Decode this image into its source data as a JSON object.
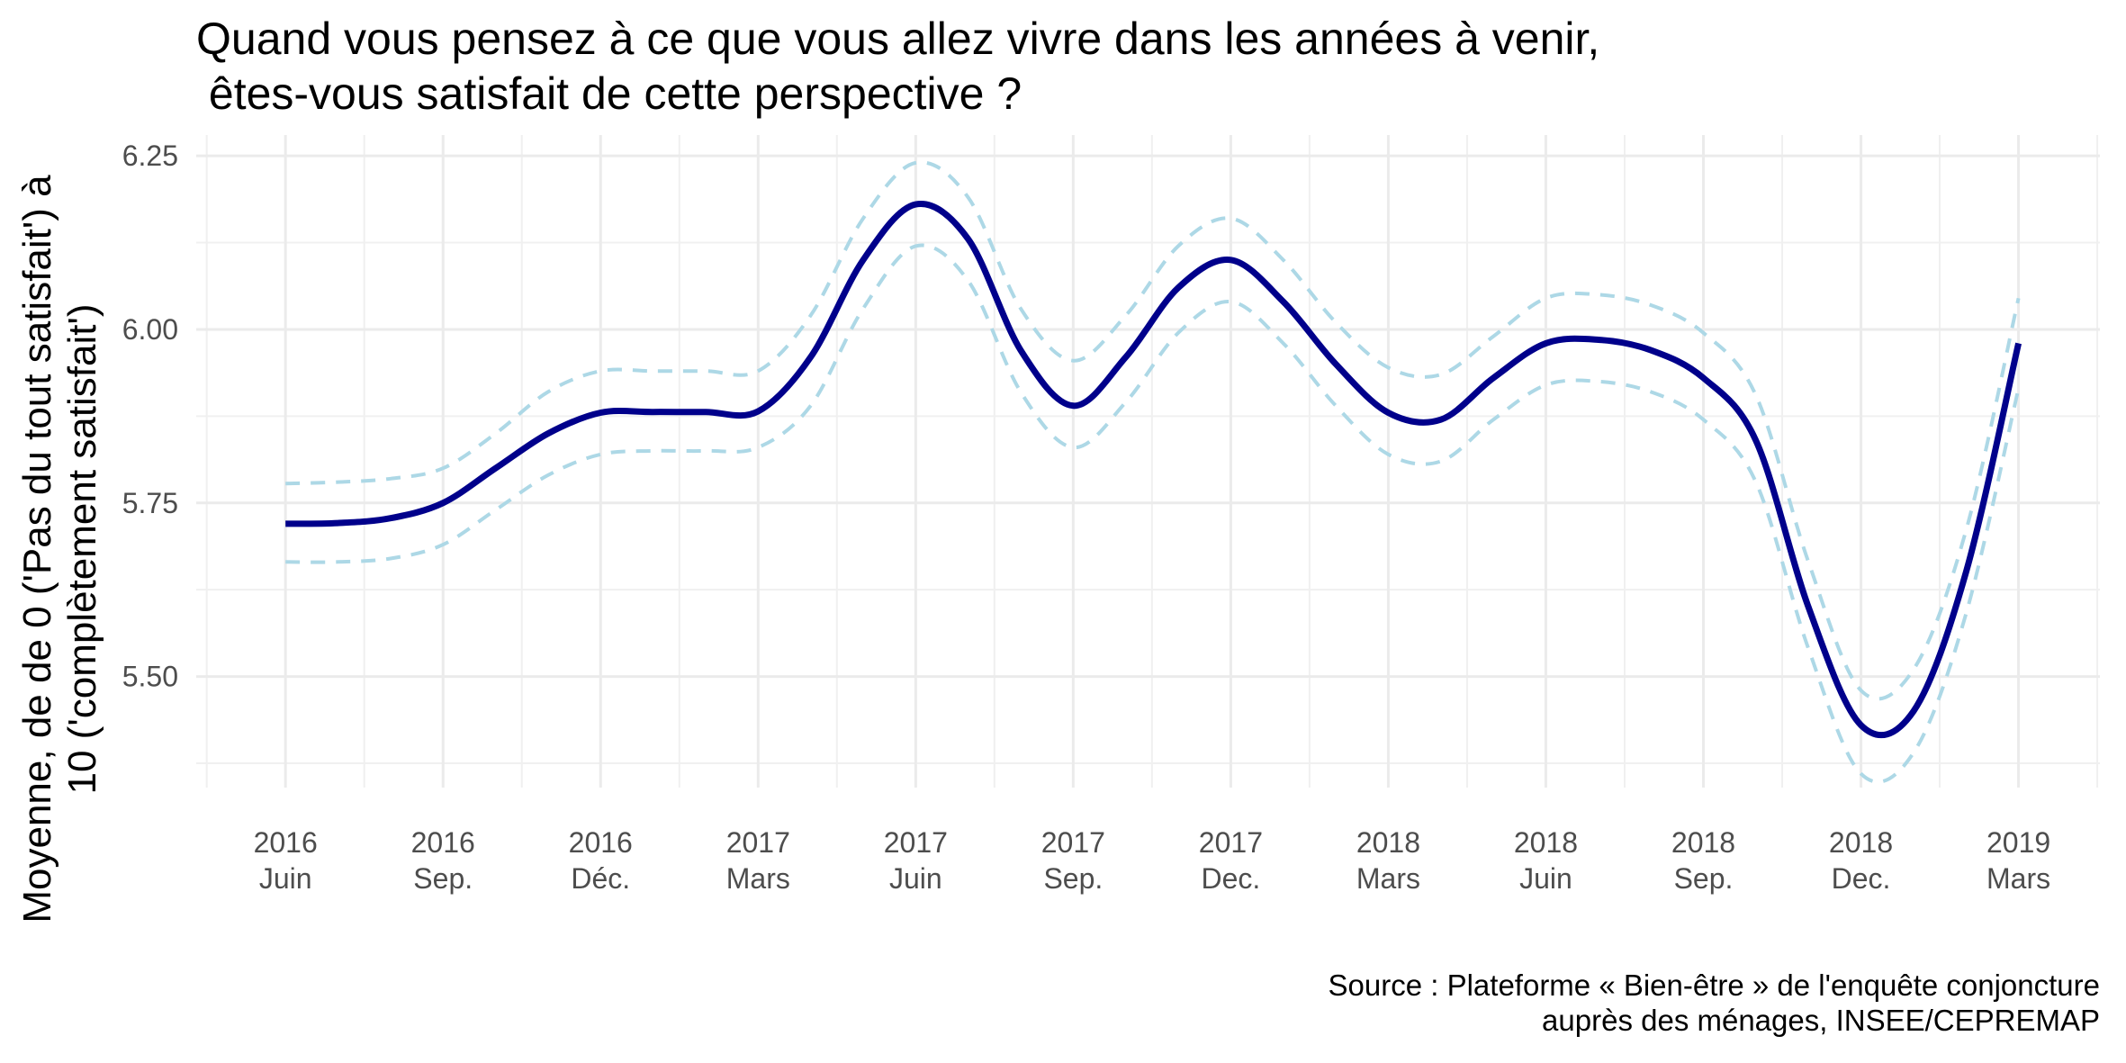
{
  "chart_data": {
    "type": "line",
    "title_lines": [
      "Quand vous pensez à ce que vous allez vivre dans les années à venir,",
      " êtes-vous satisfait de cette perspective ?"
    ],
    "ylabel_lines": [
      "Moyenne, de de 0 ('Pas du tout satisfait') à",
      "10 ('complètement satisfait')"
    ],
    "caption_lines": [
      "Source : Plateforme « Bien-être » de l'enquête conjoncture",
      "auprès des ménages, INSEE/CEPREMAP"
    ],
    "x_ticks": [
      {
        "t": 0,
        "year": "2016",
        "month": "Juin"
      },
      {
        "t": 3,
        "year": "2016",
        "month": "Sep."
      },
      {
        "t": 6,
        "year": "2016",
        "month": "Déc."
      },
      {
        "t": 9,
        "year": "2017",
        "month": "Mars"
      },
      {
        "t": 12,
        "year": "2017",
        "month": "Juin"
      },
      {
        "t": 15,
        "year": "2017",
        "month": "Sep."
      },
      {
        "t": 18,
        "year": "2017",
        "month": "Dec."
      },
      {
        "t": 21,
        "year": "2018",
        "month": "Mars"
      },
      {
        "t": 24,
        "year": "2018",
        "month": "Juin"
      },
      {
        "t": 27,
        "year": "2018",
        "month": "Sep."
      },
      {
        "t": 30,
        "year": "2018",
        "month": "Dec."
      },
      {
        "t": 33,
        "year": "2019",
        "month": "Mars"
      }
    ],
    "xlim": [
      -1.7,
      34.55
    ],
    "ylim": [
      5.34,
      6.28
    ],
    "y_ticks": [
      5.5,
      5.75,
      6.0,
      6.25
    ],
    "y_minor": [
      5.375,
      5.625,
      5.875,
      6.125
    ],
    "grid": true,
    "series": [
      {
        "role": "mean",
        "color": "#00008B",
        "style": "solid",
        "x": [
          0,
          1,
          2,
          3,
          4,
          5,
          6,
          7,
          8,
          9,
          10,
          11,
          12,
          13,
          14,
          15,
          16,
          17,
          18,
          19,
          20,
          21,
          22,
          23,
          24,
          25,
          26,
          27,
          28,
          29,
          30,
          31,
          32,
          33
        ],
        "values": [
          5.72,
          5.721,
          5.728,
          5.75,
          5.8,
          5.85,
          5.88,
          5.881,
          5.881,
          5.882,
          5.96,
          6.1,
          6.18,
          6.13,
          5.97,
          5.89,
          5.96,
          6.06,
          6.1,
          6.04,
          5.95,
          5.88,
          5.87,
          5.93,
          5.98,
          5.985,
          5.97,
          5.93,
          5.84,
          5.6,
          5.43,
          5.45,
          5.65,
          5.98
        ]
      },
      {
        "role": "upper",
        "color": "#ADD8E6",
        "style": "dashed",
        "x": [
          0,
          1,
          2,
          3,
          4,
          5,
          6,
          7,
          8,
          9,
          10,
          11,
          12,
          13,
          14,
          15,
          16,
          17,
          18,
          19,
          20,
          21,
          22,
          23,
          24,
          25,
          26,
          27,
          28,
          29,
          30,
          31,
          32,
          33
        ],
        "values": [
          5.778,
          5.78,
          5.785,
          5.8,
          5.85,
          5.91,
          5.94,
          5.94,
          5.94,
          5.94,
          6.02,
          6.16,
          6.24,
          6.19,
          6.03,
          5.955,
          6.02,
          6.12,
          6.16,
          6.1,
          6.01,
          5.945,
          5.935,
          5.99,
          6.045,
          6.05,
          6.035,
          5.995,
          5.905,
          5.665,
          5.48,
          5.51,
          5.71,
          6.045
        ]
      },
      {
        "role": "lower",
        "color": "#ADD8E6",
        "style": "dashed",
        "x": [
          0,
          1,
          2,
          3,
          4,
          5,
          6,
          7,
          8,
          9,
          10,
          11,
          12,
          13,
          14,
          15,
          16,
          17,
          18,
          19,
          20,
          21,
          22,
          23,
          24,
          25,
          26,
          27,
          28,
          29,
          30,
          31,
          32,
          33
        ],
        "values": [
          5.665,
          5.665,
          5.67,
          5.69,
          5.74,
          5.79,
          5.82,
          5.825,
          5.825,
          5.83,
          5.89,
          6.03,
          6.12,
          6.07,
          5.91,
          5.83,
          5.895,
          5.995,
          6.04,
          5.98,
          5.89,
          5.82,
          5.81,
          5.87,
          5.92,
          5.925,
          5.91,
          5.87,
          5.78,
          5.54,
          5.36,
          5.39,
          5.59,
          5.915
        ]
      }
    ]
  }
}
